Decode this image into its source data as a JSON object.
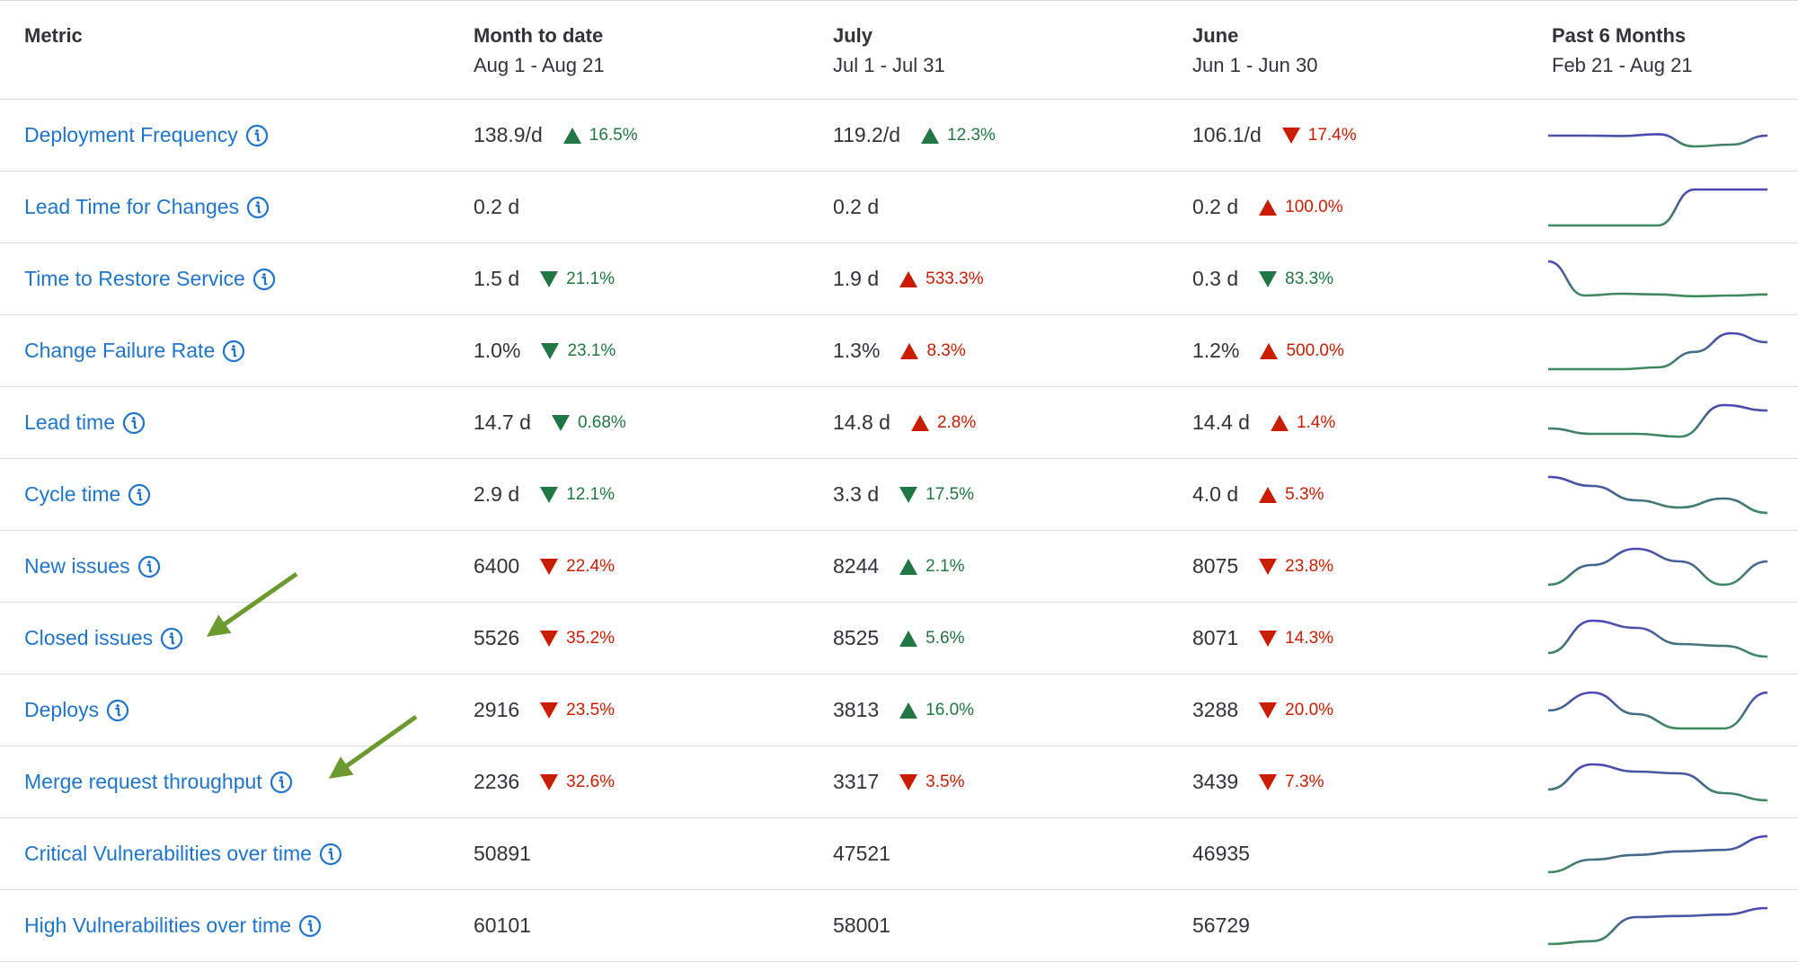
{
  "header": {
    "metric": "Metric",
    "columns": [
      {
        "title": "Month to date",
        "range": "Aug 1 - Aug 21"
      },
      {
        "title": "July",
        "range": "Jul 1 - Jul 31"
      },
      {
        "title": "June",
        "range": "Jun 1 - Jun 30"
      },
      {
        "title": "Past 6 Months",
        "range": "Feb 21 - Aug 21"
      }
    ]
  },
  "colors": {
    "link": "#1f75cb",
    "up_good": "#217645",
    "down_bad": "#c91c00",
    "arrow": "#6c9a2e"
  },
  "rows": [
    {
      "name": "Deployment Frequency",
      "cells": [
        {
          "value": "138.9/d",
          "change": "16.5%",
          "dir": "up",
          "tone": "green"
        },
        {
          "value": "119.2/d",
          "change": "12.3%",
          "dir": "up",
          "tone": "green"
        },
        {
          "value": "106.1/d",
          "change": "17.4%",
          "dir": "down",
          "tone": "red"
        }
      ],
      "trend": [
        50,
        50,
        49,
        54,
        20,
        25,
        50
      ]
    },
    {
      "name": "Lead Time for Changes",
      "cells": [
        {
          "value": "0.2 d",
          "change": "",
          "dir": "",
          "tone": ""
        },
        {
          "value": "0.2 d",
          "change": "",
          "dir": "",
          "tone": ""
        },
        {
          "value": "0.2 d",
          "change": "100.0%",
          "dir": "up",
          "tone": "red"
        }
      ],
      "trend": [
        0,
        0,
        0,
        0,
        100,
        100,
        100
      ]
    },
    {
      "name": "Time to Restore Service",
      "cells": [
        {
          "value": "1.5 d",
          "change": "21.1%",
          "dir": "down",
          "tone": "green"
        },
        {
          "value": "1.9 d",
          "change": "533.3%",
          "dir": "up",
          "tone": "red"
        },
        {
          "value": "0.3 d",
          "change": "83.3%",
          "dir": "down",
          "tone": "green"
        }
      ],
      "trend": [
        100,
        5,
        10,
        8,
        3,
        5,
        8
      ]
    },
    {
      "name": "Change Failure Rate",
      "cells": [
        {
          "value": "1.0%",
          "change": "23.1%",
          "dir": "down",
          "tone": "green"
        },
        {
          "value": "1.3%",
          "change": "8.3%",
          "dir": "up",
          "tone": "red"
        },
        {
          "value": "1.2%",
          "change": "500.0%",
          "dir": "up",
          "tone": "red"
        }
      ],
      "trend": [
        0,
        0,
        0,
        5,
        48,
        100,
        75
      ]
    },
    {
      "name": "Lead time",
      "cells": [
        {
          "value": "14.7 d",
          "change": "0.68%",
          "dir": "down",
          "tone": "green"
        },
        {
          "value": "14.8 d",
          "change": "2.8%",
          "dir": "up",
          "tone": "red"
        },
        {
          "value": "14.4 d",
          "change": "1.4%",
          "dir": "up",
          "tone": "red"
        }
      ],
      "trend": [
        35,
        20,
        20,
        12,
        100,
        85
      ]
    },
    {
      "name": "Cycle time",
      "cells": [
        {
          "value": "2.9 d",
          "change": "12.1%",
          "dir": "down",
          "tone": "green"
        },
        {
          "value": "3.3 d",
          "change": "17.5%",
          "dir": "down",
          "tone": "green"
        },
        {
          "value": "4.0 d",
          "change": "5.3%",
          "dir": "up",
          "tone": "red"
        }
      ],
      "trend": [
        100,
        75,
        35,
        15,
        40,
        0
      ]
    },
    {
      "name": "New issues",
      "cells": [
        {
          "value": "6400",
          "change": "22.4%",
          "dir": "down",
          "tone": "red"
        },
        {
          "value": "8244",
          "change": "2.1%",
          "dir": "up",
          "tone": "green"
        },
        {
          "value": "8075",
          "change": "23.8%",
          "dir": "down",
          "tone": "red"
        }
      ],
      "trend": [
        0,
        55,
        100,
        65,
        0,
        65
      ]
    },
    {
      "name": "Closed issues",
      "cells": [
        {
          "value": "5526",
          "change": "35.2%",
          "dir": "down",
          "tone": "red"
        },
        {
          "value": "8525",
          "change": "5.6%",
          "dir": "up",
          "tone": "green"
        },
        {
          "value": "8071",
          "change": "14.3%",
          "dir": "down",
          "tone": "red"
        }
      ],
      "trend": [
        10,
        100,
        80,
        35,
        30,
        0
      ]
    },
    {
      "name": "Deploys",
      "cells": [
        {
          "value": "2916",
          "change": "23.5%",
          "dir": "down",
          "tone": "red"
        },
        {
          "value": "3813",
          "change": "16.0%",
          "dir": "up",
          "tone": "green"
        },
        {
          "value": "3288",
          "change": "20.0%",
          "dir": "down",
          "tone": "red"
        }
      ],
      "trend": [
        50,
        100,
        40,
        0,
        0,
        100
      ]
    },
    {
      "name": "Merge request throughput",
      "cells": [
        {
          "value": "2236",
          "change": "32.6%",
          "dir": "down",
          "tone": "red"
        },
        {
          "value": "3317",
          "change": "3.5%",
          "dir": "down",
          "tone": "red"
        },
        {
          "value": "3439",
          "change": "7.3%",
          "dir": "down",
          "tone": "red"
        }
      ],
      "trend": [
        30,
        100,
        80,
        75,
        20,
        0
      ]
    },
    {
      "name": "Critical Vulnerabilities over time",
      "cells": [
        {
          "value": "50891",
          "change": "",
          "dir": "",
          "tone": ""
        },
        {
          "value": "47521",
          "change": "",
          "dir": "",
          "tone": ""
        },
        {
          "value": "46935",
          "change": "",
          "dir": "",
          "tone": ""
        }
      ],
      "trend": [
        0,
        35,
        48,
        58,
        62,
        100
      ]
    },
    {
      "name": "High Vulnerabilities over time",
      "cells": [
        {
          "value": "60101",
          "change": "",
          "dir": "",
          "tone": ""
        },
        {
          "value": "58001",
          "change": "",
          "dir": "",
          "tone": ""
        },
        {
          "value": "56729",
          "change": "",
          "dir": "",
          "tone": ""
        }
      ],
      "trend": [
        0,
        8,
        75,
        78,
        82,
        100
      ]
    }
  ]
}
